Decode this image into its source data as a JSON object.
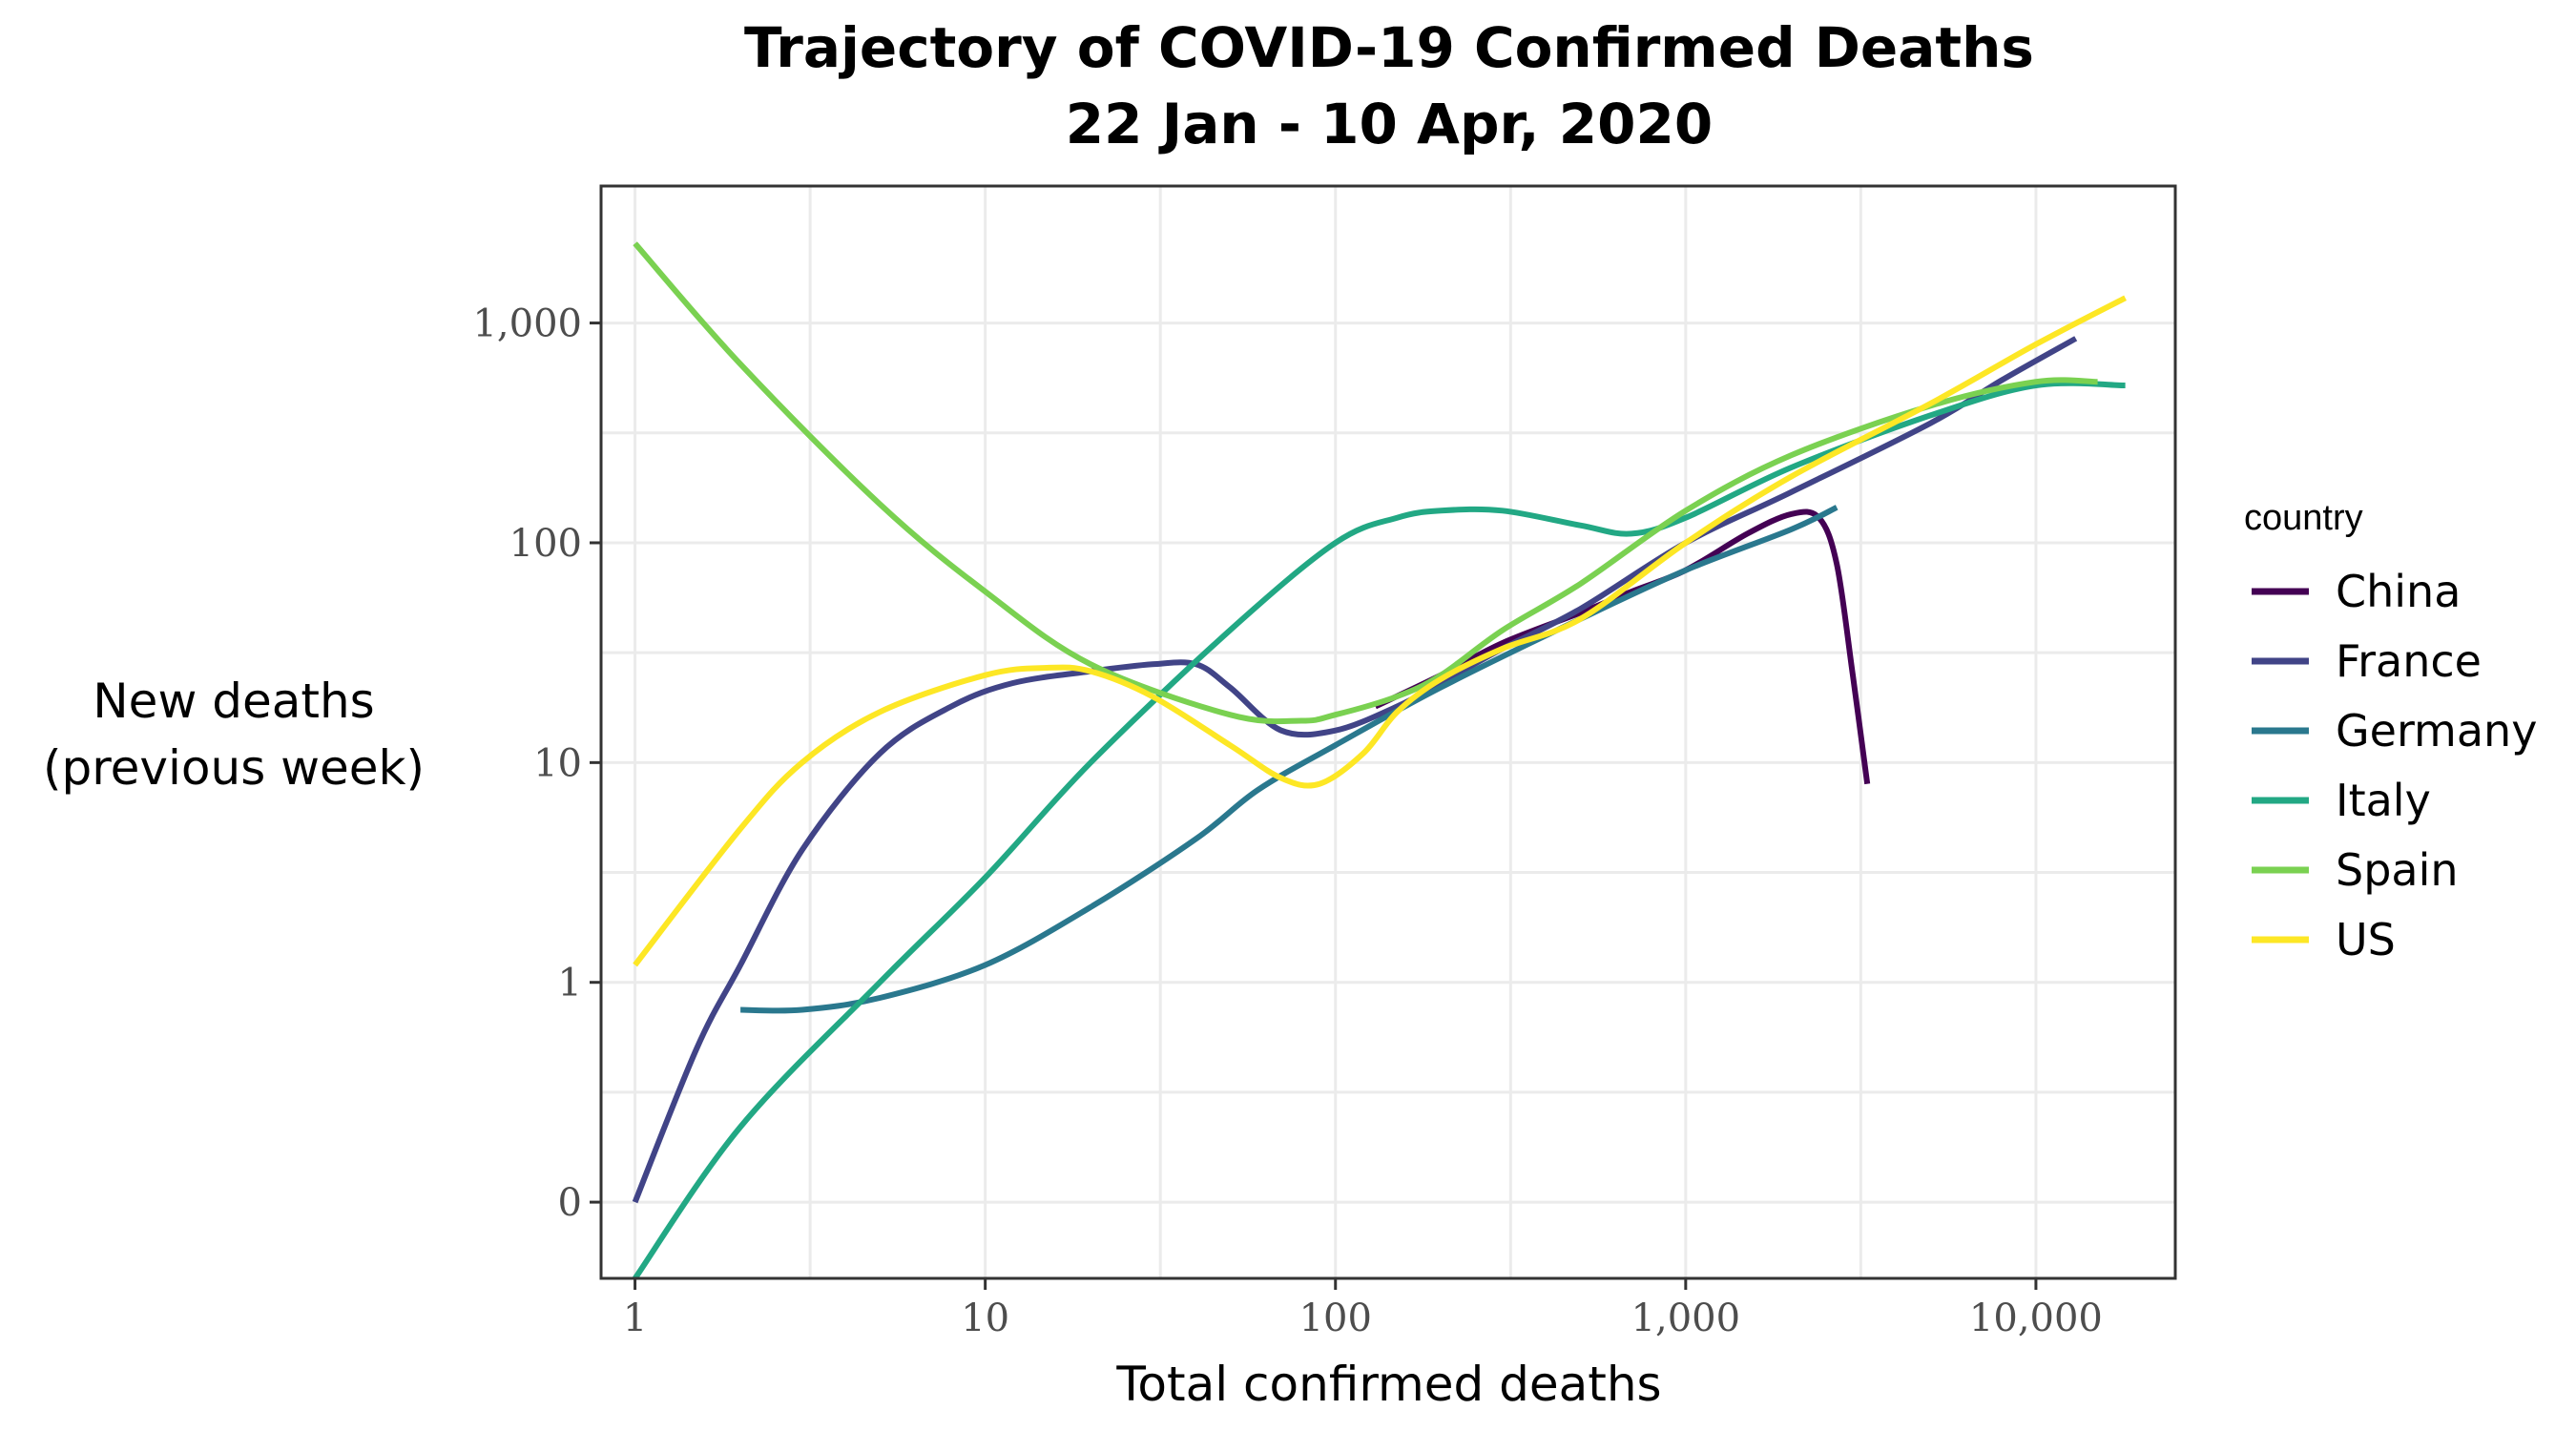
{
  "chart_data": {
    "type": "line",
    "title": "Trajectory of COVID-19 Confirmed Deaths",
    "subtitle": "22 Jan - 10 Apr, 2020",
    "xlabel": "Total confirmed deaths",
    "ylabel_line1": "New deaths",
    "ylabel_line2": "(previous week)",
    "x_scale": "log10",
    "y_scale": "log10",
    "xlim": [
      0.8,
      25000
    ],
    "ylim": [
      0.045,
      4200
    ],
    "x_ticks": [
      {
        "value": 1,
        "label": "1"
      },
      {
        "value": 10,
        "label": "10"
      },
      {
        "value": 100,
        "label": "100"
      },
      {
        "value": 1000,
        "label": "1,000"
      },
      {
        "value": 10000,
        "label": "10,000"
      }
    ],
    "y_ticks": [
      {
        "value": 0.1,
        "label": "0"
      },
      {
        "value": 1,
        "label": "1"
      },
      {
        "value": 10,
        "label": "10"
      },
      {
        "value": 100,
        "label": "100"
      },
      {
        "value": 1000,
        "label": "1,000"
      }
    ],
    "grid": true,
    "legend_title": "country",
    "legend_position": "right",
    "series": [
      {
        "name": "China",
        "color": "#440154",
        "x": [
          130,
          200,
          300,
          500,
          700,
          1000,
          1500,
          2000,
          2400,
          2700,
          3000,
          3300
        ],
        "y": [
          18,
          25,
          35,
          48,
          60,
          75,
          110,
          135,
          130,
          80,
          25,
          8
        ]
      },
      {
        "name": "France",
        "color": "#414487",
        "x": [
          1,
          1.5,
          2,
          3,
          5,
          8,
          12,
          20,
          30,
          40,
          50,
          70,
          100,
          150,
          200,
          300,
          500,
          1000,
          2000,
          5000,
          8000,
          13000
        ],
        "y": [
          0.1,
          0.5,
          1.2,
          4,
          11,
          18,
          23,
          26,
          28,
          28,
          22,
          14,
          14,
          18,
          23,
          33,
          50,
          100,
          170,
          350,
          550,
          850
        ]
      },
      {
        "name": "Germany",
        "color": "#2A788E",
        "x": [
          2,
          3,
          5,
          10,
          20,
          40,
          60,
          100,
          200,
          500,
          1000,
          2000,
          2700
        ],
        "y": [
          0.75,
          0.75,
          0.85,
          1.2,
          2.2,
          4.5,
          7.5,
          12,
          22,
          45,
          75,
          115,
          145
        ]
      },
      {
        "name": "Italy",
        "color": "#22A884",
        "x": [
          1,
          2,
          5,
          10,
          20,
          50,
          100,
          150,
          200,
          300,
          500,
          700,
          1000,
          2000,
          5000,
          10000,
          18000
        ],
        "y": [
          0.045,
          0.22,
          1.0,
          3,
          10,
          40,
          100,
          130,
          140,
          140,
          120,
          110,
          130,
          220,
          380,
          520,
          520
        ]
      },
      {
        "name": "Spain",
        "color": "#7AD151",
        "x": [
          1,
          2,
          5,
          10,
          20,
          50,
          80,
          100,
          150,
          200,
          300,
          500,
          1000,
          2000,
          5000,
          10000,
          15000
        ],
        "y": [
          2300,
          650,
          150,
          60,
          28,
          16.5,
          15.5,
          16.5,
          20,
          25,
          40,
          65,
          140,
          250,
          420,
          540,
          540
        ]
      },
      {
        "name": "US",
        "color": "#FDE725",
        "x": [
          1,
          2,
          3,
          5,
          10,
          15,
          20,
          30,
          50,
          70,
          90,
          120,
          150,
          200,
          300,
          500,
          1000,
          2000,
          5000,
          10000,
          18000
        ],
        "y": [
          1.2,
          5,
          10,
          17,
          25,
          27,
          26,
          20,
          12,
          8.5,
          8,
          11,
          17,
          24,
          33,
          45,
          100,
          200,
          430,
          800,
          1300
        ]
      }
    ]
  }
}
